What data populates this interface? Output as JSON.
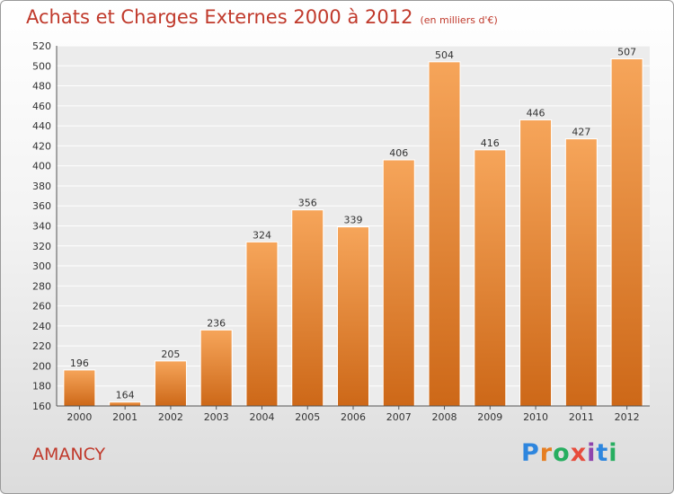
{
  "title": "Achats et Charges Externes 2000 à 2012",
  "subtitle": "(en milliers d'€)",
  "commune": "AMANCY",
  "logo": {
    "text": "Proxiti",
    "letters": [
      {
        "ch": "P",
        "color": "#2e86de"
      },
      {
        "ch": "r",
        "color": "#e67e22"
      },
      {
        "ch": "o",
        "color": "#27ae60"
      },
      {
        "ch": "x",
        "color": "#e74c3c"
      },
      {
        "ch": "i",
        "color": "#8e44ad"
      },
      {
        "ch": "t",
        "color": "#2e86de"
      },
      {
        "ch": "i",
        "color": "#27ae60"
      }
    ]
  },
  "colors": {
    "bar_light": "#f6a55a",
    "bar_dark": "#cd6818",
    "title": "#c0392b"
  },
  "chart_data": {
    "type": "bar",
    "categories": [
      "2000",
      "2001",
      "2002",
      "2003",
      "2004",
      "2005",
      "2006",
      "2007",
      "2008",
      "2009",
      "2010",
      "2011",
      "2012"
    ],
    "values": [
      196,
      164,
      205,
      236,
      324,
      356,
      339,
      406,
      504,
      416,
      446,
      427,
      507
    ],
    "ylim": [
      160,
      520
    ],
    "yticks": [
      160,
      180,
      200,
      220,
      240,
      260,
      280,
      300,
      320,
      340,
      360,
      380,
      400,
      420,
      440,
      460,
      480,
      500,
      520
    ],
    "grid": true,
    "xlabel": "",
    "ylabel": ""
  }
}
